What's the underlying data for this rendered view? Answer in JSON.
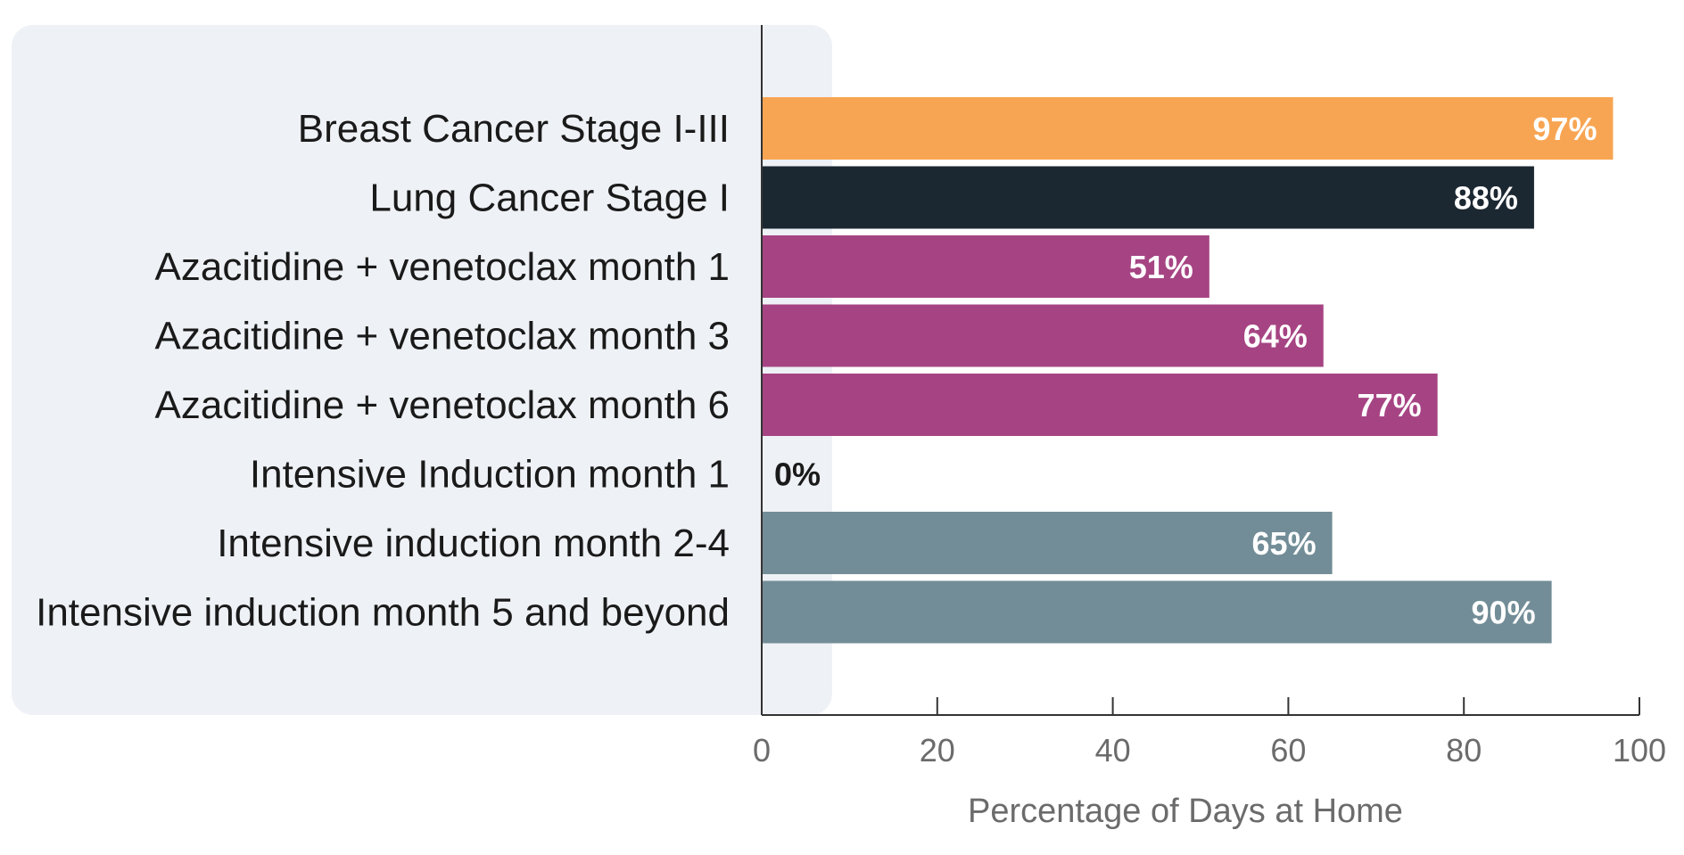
{
  "chart_data": {
    "type": "bar",
    "orientation": "horizontal",
    "categories": [
      "Breast Cancer Stage I-III",
      "Lung Cancer Stage I",
      "Azacitidine + venetoclax month 1",
      "Azacitidine + venetoclax month 3",
      "Azacitidine + venetoclax month 6",
      "Intensive Induction month 1",
      "Intensive induction month 2-4",
      "Intensive induction month 5 and beyond"
    ],
    "values": [
      97,
      88,
      51,
      64,
      77,
      0,
      65,
      90
    ],
    "value_labels": [
      "97%",
      "88%",
      "51%",
      "64%",
      "77%",
      "0%",
      "65%",
      "90%"
    ],
    "bar_colors": [
      "#F8A553",
      "#1B2731",
      "#A64483",
      "#A64483",
      "#A64483",
      "#A64483",
      "#728D97",
      "#728D97"
    ],
    "title": "",
    "xlabel": "Percentage of Days at Home",
    "ylabel": "",
    "xlim": [
      0,
      100
    ],
    "xticks": [
      0,
      20,
      40,
      60,
      80,
      100
    ],
    "xtick_labels": [
      "0",
      "20",
      "40",
      "60",
      "80",
      "100"
    ],
    "grid": false,
    "legend": "none",
    "colors": {
      "label_panel_bg": "#EEF1F5",
      "axis": "#333333",
      "tick_text": "#6B6B6B",
      "category_text": "#1A1A1A",
      "value_text_inside": "#FFFFFF",
      "value_text_outside": "#1A1A1A"
    }
  }
}
